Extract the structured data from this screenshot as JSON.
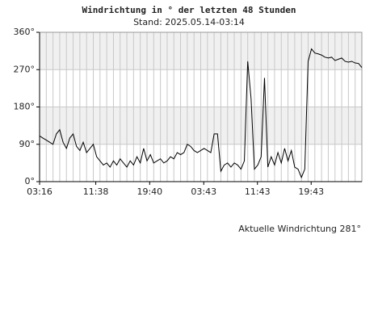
{
  "chart_data": {
    "type": "line",
    "title": "Windrichtung in ° der letzten 48 Stunden",
    "subtitle": "Stand: 2025.05.14-03:14",
    "annotation": "Aktuelle Windrichtung 281°",
    "x": [
      0,
      0.5,
      1,
      1.5,
      2,
      2.5,
      3,
      3.5,
      4,
      4.5,
      5,
      5.5,
      6,
      6.5,
      7,
      7.5,
      8,
      8.5,
      9,
      9.5,
      10,
      10.5,
      11,
      11.5,
      12,
      12.5,
      13,
      13.5,
      14,
      14.5,
      15,
      15.5,
      16,
      16.5,
      17,
      17.5,
      18,
      18.5,
      19,
      19.5,
      20,
      20.5,
      21,
      21.5,
      22,
      22.5,
      23,
      23.5,
      24,
      24.5,
      25,
      25.5,
      26,
      26.5,
      27,
      27.5,
      28,
      28.5,
      29,
      29.5,
      30,
      30.5,
      31,
      31.5,
      32,
      32.5,
      33,
      33.5,
      34,
      34.5,
      35,
      35.5,
      36,
      36.5,
      37,
      37.5,
      38,
      38.5,
      39,
      39.5,
      40,
      40.5,
      41,
      41.5,
      42,
      42.5,
      43,
      43.5,
      44,
      44.5,
      45,
      45.5,
      46,
      46.5,
      47,
      47.5,
      48
    ],
    "series": [
      {
        "name": "Windrichtung",
        "color": "#000000",
        "values": [
          110,
          105,
          100,
          95,
          90,
          115,
          125,
          95,
          80,
          105,
          115,
          85,
          75,
          95,
          70,
          80,
          90,
          60,
          50,
          40,
          45,
          35,
          50,
          40,
          55,
          45,
          35,
          50,
          40,
          60,
          45,
          80,
          50,
          65,
          45,
          50,
          55,
          45,
          50,
          60,
          55,
          70,
          65,
          70,
          90,
          85,
          75,
          70,
          75,
          80,
          75,
          70,
          115,
          115,
          25,
          40,
          45,
          35,
          45,
          40,
          30,
          50,
          290,
          200,
          30,
          40,
          60,
          250,
          35,
          60,
          40,
          70,
          45,
          80,
          50,
          75,
          35,
          30,
          10,
          30,
          290,
          320,
          310,
          308,
          305,
          300,
          298,
          300,
          292,
          295,
          298,
          290,
          288,
          290,
          286,
          285,
          275
        ]
      }
    ],
    "xlim": [
      0,
      48
    ],
    "xticks": [
      {
        "value": 0,
        "label": "03:16"
      },
      {
        "value": 8.37,
        "label": "11:38"
      },
      {
        "value": 16.4,
        "label": "19:40"
      },
      {
        "value": 24.45,
        "label": "03:43"
      },
      {
        "value": 32.45,
        "label": "11:43"
      },
      {
        "value": 40.45,
        "label": "19:43"
      }
    ],
    "ylim": [
      0,
      360
    ],
    "yticks": [
      {
        "value": 0,
        "label": "0°"
      },
      {
        "value": 90,
        "label": "90°"
      },
      {
        "value": 180,
        "label": "180°"
      },
      {
        "value": 270,
        "label": "270°"
      },
      {
        "value": 360,
        "label": "360°"
      }
    ],
    "grid": true
  }
}
